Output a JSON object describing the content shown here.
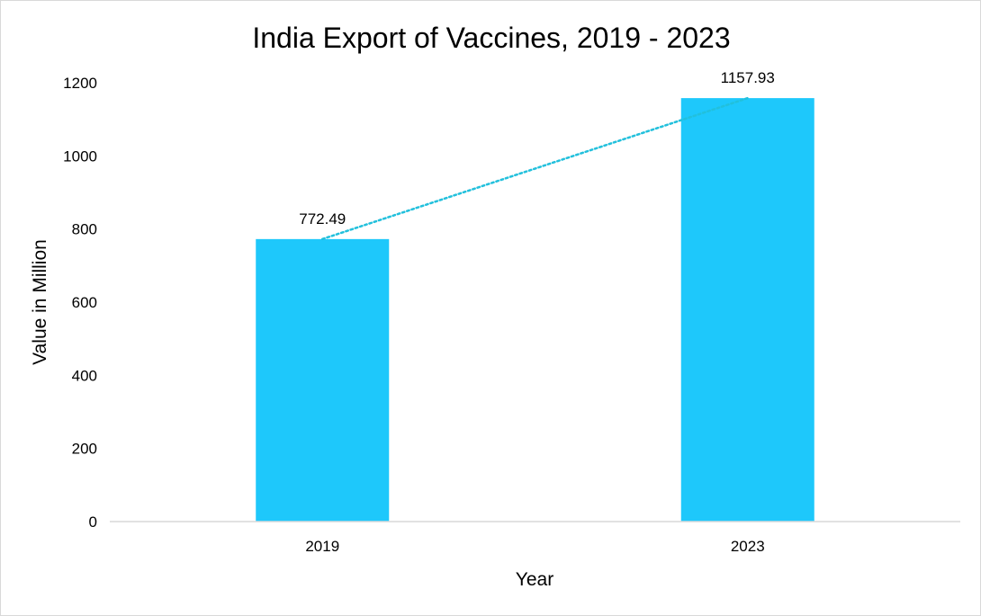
{
  "chart_data": {
    "type": "bar",
    "title": "India Export of Vaccines, 2019 - 2023",
    "xlabel": "Year",
    "ylabel": "Value in Million",
    "categories": [
      "2019",
      "2023"
    ],
    "values": [
      772.49,
      1157.93
    ],
    "data_labels": [
      "772.49",
      "1157.93"
    ],
    "ylim": [
      0,
      1200
    ],
    "yticks": [
      0,
      200,
      400,
      600,
      800,
      1000,
      1200
    ],
    "ytick_labels": [
      "0",
      "200",
      "400",
      "600",
      "800",
      "1000",
      "1200"
    ],
    "grid": false,
    "legend": "none",
    "trendline": {
      "type": "linear",
      "style": "dotted"
    },
    "colors": {
      "bar": "#1ec8fb",
      "trendline": "#22c0dc",
      "axis": "#d9d9d9"
    }
  }
}
